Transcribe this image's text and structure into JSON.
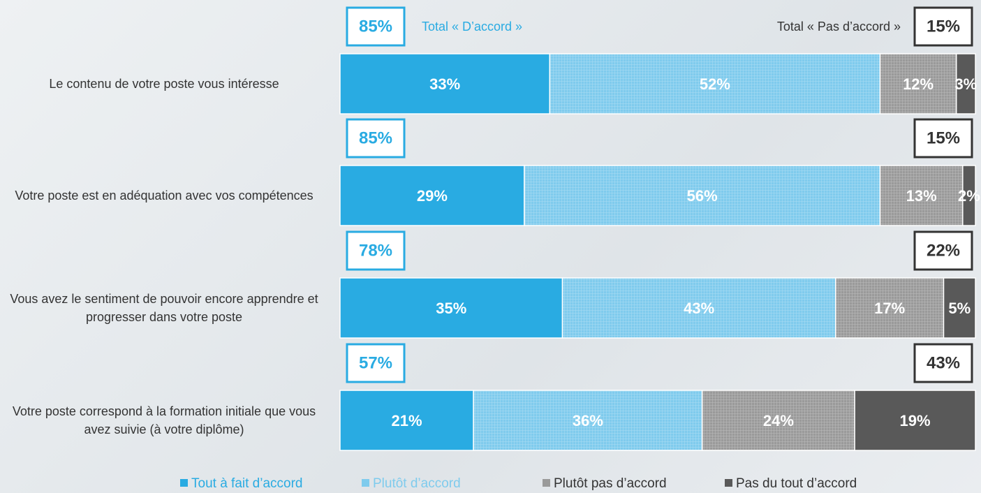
{
  "chart_data": {
    "type": "stacked-bar-horizontal",
    "categories": [
      "Le contenu de votre poste vous intéresse",
      "Votre poste est en adéquation avec vos compétences",
      "Vous avez le sentiment de pouvoir encore apprendre et progresser dans votre poste",
      "Votre poste correspond à la formation initiale que vous avez suivie (à votre diplôme)"
    ],
    "xlim": [
      0,
      100
    ],
    "series": [
      {
        "name": "Tout à fait d’accord",
        "color": "#29abe2",
        "values": [
          33,
          29,
          35,
          21
        ],
        "value_labels": [
          "33%",
          "29%",
          "35%",
          "21%"
        ]
      },
      {
        "name": "Plutôt d’accord",
        "color": "#7fcbed",
        "pattern": "grid",
        "values": [
          52,
          56,
          43,
          36
        ],
        "value_labels": [
          "52%",
          "56%",
          "43%",
          "36%"
        ]
      },
      {
        "name": "Plutôt pas d’accord",
        "color": "#9a9a9a",
        "pattern": "grid",
        "values": [
          12,
          13,
          17,
          24
        ],
        "value_labels": [
          "12%",
          "13%",
          "17%",
          "24%"
        ]
      },
      {
        "name": "Pas du tout d’accord",
        "color": "#595959",
        "values": [
          3,
          2,
          5,
          19
        ],
        "value_labels": [
          "3%",
          "2%",
          "5%",
          "19%"
        ]
      }
    ],
    "totals": [
      {
        "name": "Total « D’accord »",
        "color": "#29abe2",
        "values": [
          85,
          85,
          78,
          57
        ],
        "value_labels": [
          "85%",
          "85%",
          "78%",
          "57%"
        ]
      },
      {
        "name": "Total « Pas d’accord »",
        "color": "#333333",
        "values": [
          15,
          15,
          22,
          43
        ],
        "value_labels": [
          "15%",
          "15%",
          "22%",
          "43%"
        ]
      }
    ]
  }
}
